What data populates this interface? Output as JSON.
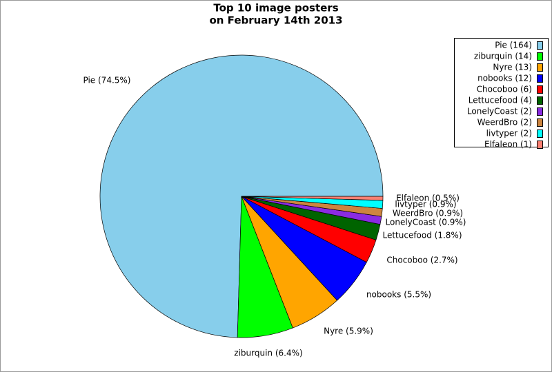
{
  "chart_data": {
    "type": "pie",
    "title": [
      "Top 10 image posters",
      "on February 14th 2013"
    ],
    "values": [
      164,
      14,
      13,
      12,
      6,
      4,
      2,
      2,
      2,
      1
    ],
    "labels": [
      "Pie (74.5%)",
      "ziburquin (6.4%)",
      "Nyre (5.9%)",
      "nobooks (5.5%)",
      "Chocoboo (2.7%)",
      "Lettucefood (1.8%)",
      "LonelyCoast (0.9%)",
      "WeerdBro (0.9%)",
      "livtyper (0.9%)",
      "Elfaleon (0.5%)"
    ],
    "legend_labels": [
      "Pie (164)",
      "ziburquin (14)",
      "Nyre (13)",
      "nobooks (12)",
      "Chocoboo (6)",
      "Lettucefood (4)",
      "LonelyCoast (2)",
      "WeerdBro (2)",
      "livtyper (2)",
      "Elfaleon (1)"
    ],
    "colors": [
      "#87ceeb",
      "#00ff00",
      "#ffa500",
      "#0000ff",
      "#ff0000",
      "#006400",
      "#8a2be2",
      "#cd853f",
      "#00ffff",
      "#fa8072"
    ],
    "legend": "upper right"
  }
}
